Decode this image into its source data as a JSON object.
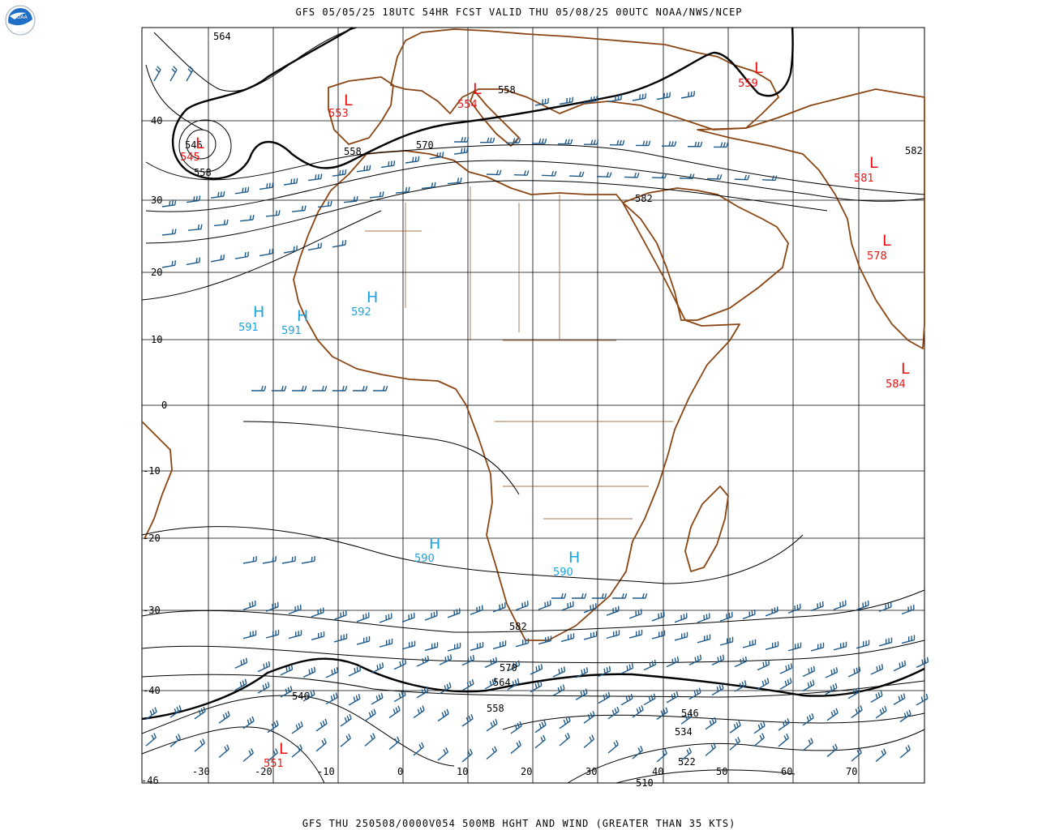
{
  "header": {
    "title": "GFS 05/05/25 18UTC 54HR FCST VALID THU 05/08/25 00UTC NOAA/NWS/NCEP"
  },
  "footer": {
    "title": "GFS THU 250508/0000V054 500MB HGHT AND WIND (GREATER THAN 35 KTS)"
  },
  "logo": {
    "text": "NOAA"
  },
  "colors": {
    "low": "#ee1111",
    "high": "#1aa3dd",
    "coast": "#8b4513",
    "barb": "#1f5a8a",
    "contour": "#000000"
  },
  "lat_labels": [
    "40",
    "30",
    "20",
    "10",
    "0",
    "-10",
    "-20",
    "-30",
    "-40",
    "-46"
  ],
  "lon_labels": [
    "-30",
    "-20",
    "-10",
    "0",
    "10",
    "20",
    "30",
    "40",
    "50",
    "60",
    "70"
  ],
  "contour_labels": [
    "564",
    "558",
    "546",
    "558",
    "570",
    "582",
    "558",
    "582",
    "582",
    "570",
    "564",
    "558",
    "546",
    "534",
    "522",
    "510",
    "546",
    "558",
    "581"
  ],
  "systems": [
    {
      "type": "L",
      "value": "545"
    },
    {
      "type": "L",
      "value": "553"
    },
    {
      "type": "L",
      "value": "554"
    },
    {
      "type": "L",
      "value": "559"
    },
    {
      "type": "L",
      "value": "581"
    },
    {
      "type": "L",
      "value": "578"
    },
    {
      "type": "L",
      "value": "584"
    },
    {
      "type": "L",
      "value": "551"
    },
    {
      "type": "H",
      "value": "591"
    },
    {
      "type": "H",
      "value": "591"
    },
    {
      "type": "H",
      "value": "592"
    },
    {
      "type": "H",
      "value": "590"
    },
    {
      "type": "H",
      "value": "590"
    }
  ]
}
